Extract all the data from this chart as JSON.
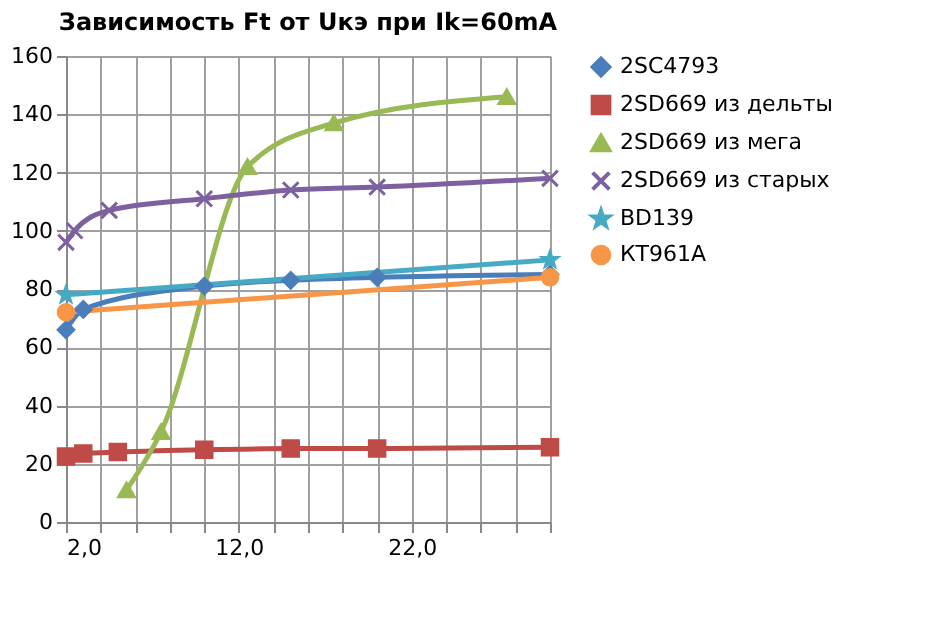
{
  "chart_data": {
    "type": "line",
    "title": "Зависимость Ft от Uкэ при Ik=60mA",
    "xlim": [
      2,
      30
    ],
    "ylim": [
      0,
      160
    ],
    "xticks": [
      {
        "value": 2,
        "label": "2,0"
      },
      {
        "value": 4,
        "label": null
      },
      {
        "value": 6,
        "label": null
      },
      {
        "value": 8,
        "label": null
      },
      {
        "value": 10,
        "label": null
      },
      {
        "value": 12,
        "label": "12,0"
      },
      {
        "value": 14,
        "label": null
      },
      {
        "value": 16,
        "label": null
      },
      {
        "value": 18,
        "label": null
      },
      {
        "value": 20,
        "label": null
      },
      {
        "value": 22,
        "label": "22,0"
      },
      {
        "value": 24,
        "label": null
      },
      {
        "value": 26,
        "label": null
      },
      {
        "value": 28,
        "label": null
      },
      {
        "value": 30,
        "label": null
      }
    ],
    "yticks": [
      0,
      20,
      40,
      60,
      80,
      100,
      120,
      140,
      160
    ],
    "grid": true,
    "legend": "right",
    "series": [
      {
        "name": "2SC4793",
        "color": "#4a7ebb",
        "marker": "diamond",
        "x": [
          2,
          3,
          10,
          15,
          20,
          30
        ],
        "values": [
          66,
          73,
          81,
          83,
          84,
          85
        ]
      },
      {
        "name": "2SD669 из дельты",
        "color": "#be4b48",
        "marker": "square",
        "x": [
          2,
          3,
          5,
          10,
          15,
          20,
          30
        ],
        "values": [
          22.5,
          23.5,
          24,
          24.8,
          25.2,
          25.2,
          25.7
        ]
      },
      {
        "name": "2SD669 из мега",
        "color": "#98b954",
        "marker": "triangle",
        "x": [
          5.5,
          7.5,
          12.5,
          17.5,
          27.5
        ],
        "values": [
          11,
          31,
          122,
          137,
          146
        ]
      },
      {
        "name": "2SD669 из старых",
        "color": "#7d60a0",
        "marker": "cross",
        "x": [
          2,
          2.5,
          4.5,
          10,
          15,
          20,
          30
        ],
        "values": [
          96,
          100,
          107,
          111,
          114,
          115,
          118
        ]
      },
      {
        "name": "BD139",
        "color": "#46aac5",
        "marker": "star",
        "x": [
          2,
          30
        ],
        "values": [
          78,
          90
        ]
      },
      {
        "name": "КТ961А",
        "color": "#f79646",
        "marker": "circle",
        "x": [
          2,
          30
        ],
        "values": [
          72,
          84
        ]
      }
    ]
  }
}
